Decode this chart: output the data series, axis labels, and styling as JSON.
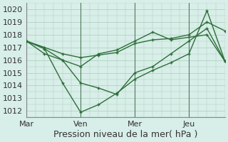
{
  "title": "Pression niveau de la mer( hPa )",
  "ylim": [
    1011.5,
    1020.5
  ],
  "bg_color": "#d8eee8",
  "grid_color": "#aaccbb",
  "line_color": "#2d6e3a",
  "xtick_labels": [
    "Mar",
    "Ven",
    "Mer",
    "Jeu"
  ],
  "xtick_positions": [
    0,
    3,
    6,
    9
  ],
  "xmax": 11,
  "series": [
    [
      1017.5,
      1017.0,
      1016.5,
      1016.2,
      1016.4,
      1016.6,
      1017.3,
      1017.6,
      1017.7,
      1018.0,
      1019.0,
      1018.3
    ],
    [
      1017.5,
      1016.9,
      1016.0,
      1015.5,
      1016.5,
      1016.8,
      1017.5,
      1018.2,
      1017.6,
      1017.8,
      1018.0,
      1015.9
    ],
    [
      1017.5,
      1016.5,
      1016.0,
      1014.2,
      1013.8,
      1013.3,
      1015.0,
      1015.5,
      1016.5,
      1017.5,
      1018.5,
      1015.9
    ],
    [
      1017.5,
      1016.9,
      1014.2,
      1011.9,
      1012.5,
      1013.4,
      1014.5,
      1015.2,
      1015.8,
      1016.5,
      1019.9,
      1015.9
    ]
  ],
  "yticks": [
    1012,
    1013,
    1014,
    1015,
    1016,
    1017,
    1018,
    1019,
    1020
  ],
  "fontsize": 9,
  "tick_fontsize": 8
}
